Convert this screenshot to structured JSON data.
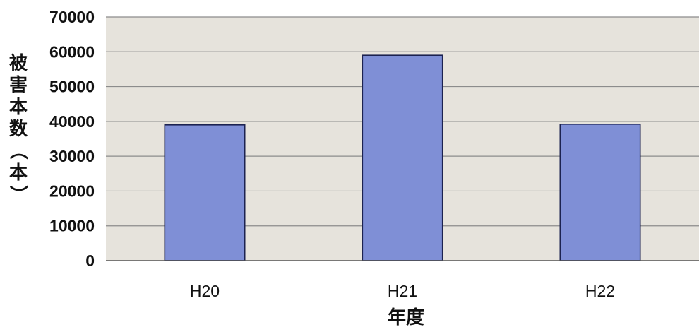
{
  "chart_data": {
    "type": "bar",
    "title": "",
    "xlabel": "年度",
    "ylabel": "被害本数（本）",
    "categories": [
      "H20",
      "H21",
      "H22"
    ],
    "values": [
      39000,
      59000,
      39200
    ],
    "ylim": [
      0,
      70000
    ],
    "yticks": [
      "0",
      "10000",
      "20000",
      "30000",
      "40000",
      "50000",
      "60000",
      "70000"
    ],
    "grid": true,
    "legend": "none",
    "colors": {
      "bar_fill": "#7f8fd6",
      "bar_stroke": "#1c2250",
      "plot_background": "#e6e3dc",
      "gridline": "#8c8c8c",
      "axis": "#555555"
    }
  }
}
